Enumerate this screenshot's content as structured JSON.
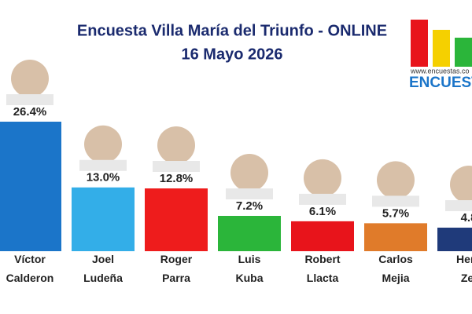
{
  "chart_data": {
    "type": "bar",
    "title": "Encuesta Villa María del Triunfo - ONLINE",
    "subtitle": "16 Mayo 2026",
    "logo": {
      "url": "www.encuestas.co",
      "name": "ENCUEST"
    },
    "categories": [
      "Víctor Calderon",
      "Joel Ludeña",
      "Roger Parra",
      "Luis Kuba",
      "Robert Llacta",
      "Carlos Mejia",
      "Herb Zel"
    ],
    "values": [
      26.4,
      13.0,
      12.8,
      7.2,
      6.1,
      5.7,
      4.8
    ],
    "value_labels": [
      "26.4%",
      "13.0%",
      "12.8%",
      "7.2%",
      "6.1%",
      "5.7%",
      "4.8"
    ],
    "colors": [
      "#1b75c9",
      "#33aee8",
      "#ee1c1c",
      "#2bb53a",
      "#e8141b",
      "#e07b2a",
      "#1f3a7a"
    ]
  }
}
